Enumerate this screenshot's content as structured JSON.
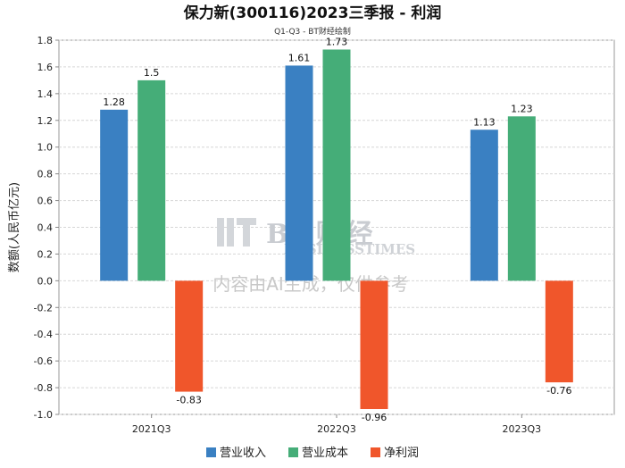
{
  "chart_data": {
    "type": "bar",
    "title": "保力新(300116)2023三季报 - 利润",
    "subtitle": "Q1-Q3 - BT财经绘制",
    "xlabel": "",
    "ylabel": "数额(人民币亿元)",
    "ylim": [
      -1.0,
      1.8
    ],
    "yticks": [
      1.8,
      1.6,
      1.4,
      1.2,
      1.0,
      0.8,
      0.6,
      0.4,
      0.2,
      0.0,
      -0.2,
      -0.4,
      -0.6,
      -0.8,
      -1.0
    ],
    "ytick_labels": [
      "1.8",
      "1.6",
      "1.4",
      "1.2",
      "1.0",
      "0.8",
      "0.6",
      "0.4",
      "0.2",
      "0.0",
      "-0.2",
      "-0.4",
      "-0.6",
      "-0.8",
      "-1.0"
    ],
    "grid": true,
    "legend_position": "bottom",
    "categories": [
      "2021Q3",
      "2022Q3",
      "2023Q3"
    ],
    "series": [
      {
        "name": "营业收入",
        "color": "#3a80c2",
        "values": [
          1.28,
          1.61,
          1.13
        ],
        "labels": [
          "1.28",
          "1.61",
          "1.13"
        ]
      },
      {
        "name": "营业成本",
        "color": "#45ad78",
        "values": [
          1.5,
          1.73,
          1.23
        ],
        "labels": [
          "1.5",
          "1.73",
          "1.23"
        ]
      },
      {
        "name": "净利润",
        "color": "#f0562b",
        "values": [
          -0.83,
          -0.96,
          -0.76
        ],
        "labels": [
          "-0.83",
          "-0.96",
          "-0.76"
        ]
      }
    ]
  },
  "watermark": {
    "brand": "BT财经",
    "brand_en": "BUSINESSTIMES",
    "note": "内容由AI生成，仅供参考"
  }
}
